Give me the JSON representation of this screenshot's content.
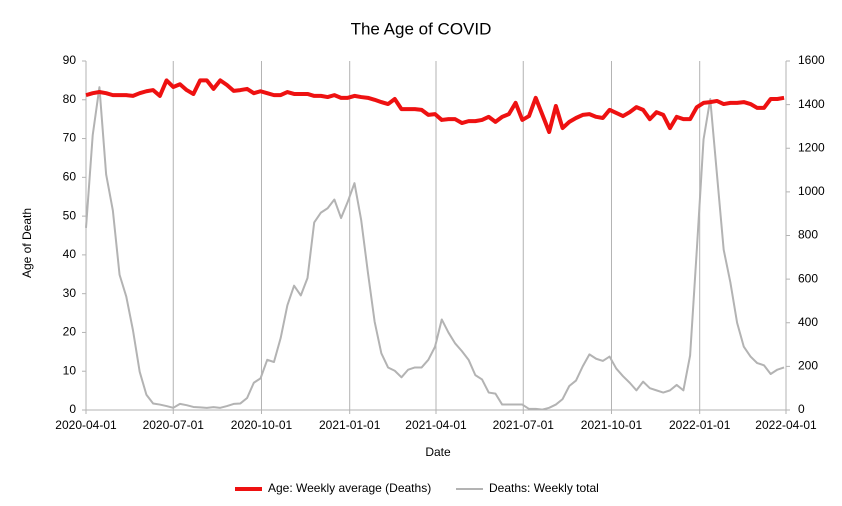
{
  "chart_data": {
    "type": "line",
    "title": "The Age of COVID",
    "xlabel": "Date",
    "ylabel": "Age of Death",
    "x": [
      "2020-04-01",
      "2020-04-08",
      "2020-04-15",
      "2020-04-22",
      "2020-04-29",
      "2020-05-06",
      "2020-05-13",
      "2020-05-20",
      "2020-05-27",
      "2020-06-03",
      "2020-06-10",
      "2020-06-17",
      "2020-06-24",
      "2020-07-01",
      "2020-07-08",
      "2020-07-15",
      "2020-07-22",
      "2020-07-29",
      "2020-08-05",
      "2020-08-12",
      "2020-08-19",
      "2020-08-26",
      "2020-09-02",
      "2020-09-09",
      "2020-09-16",
      "2020-09-23",
      "2020-09-30",
      "2020-10-07",
      "2020-10-14",
      "2020-10-21",
      "2020-10-28",
      "2020-11-04",
      "2020-11-11",
      "2020-11-18",
      "2020-11-25",
      "2020-12-02",
      "2020-12-09",
      "2020-12-16",
      "2020-12-23",
      "2020-12-30",
      "2021-01-06",
      "2021-01-13",
      "2021-01-20",
      "2021-01-27",
      "2021-02-03",
      "2021-02-10",
      "2021-02-17",
      "2021-02-24",
      "2021-03-03",
      "2021-03-10",
      "2021-03-17",
      "2021-03-24",
      "2021-03-31",
      "2021-04-07",
      "2021-04-14",
      "2021-04-21",
      "2021-04-28",
      "2021-05-05",
      "2021-05-12",
      "2021-05-19",
      "2021-05-26",
      "2021-06-02",
      "2021-06-09",
      "2021-06-16",
      "2021-06-23",
      "2021-06-30",
      "2021-07-07",
      "2021-07-14",
      "2021-07-21",
      "2021-07-28",
      "2021-08-04",
      "2021-08-11",
      "2021-08-18",
      "2021-08-25",
      "2021-09-01",
      "2021-09-08",
      "2021-09-15",
      "2021-09-22",
      "2021-09-29",
      "2021-10-06",
      "2021-10-13",
      "2021-10-20",
      "2021-10-27",
      "2021-11-03",
      "2021-11-10",
      "2021-11-17",
      "2021-11-24",
      "2021-12-01",
      "2021-12-08",
      "2021-12-15",
      "2021-12-22",
      "2021-12-29",
      "2022-01-05",
      "2022-01-12",
      "2022-01-19",
      "2022-01-26",
      "2022-02-02",
      "2022-02-09",
      "2022-02-16",
      "2022-02-23",
      "2022-03-02",
      "2022-03-09",
      "2022-03-16",
      "2022-03-23",
      "2022-03-30"
    ],
    "series": [
      {
        "name": "Age: Weekly average (Deaths)",
        "color": "#ee1111",
        "axis": "y",
        "values": [
          81.2,
          81.7,
          82,
          81.7,
          81.2,
          81.2,
          81.2,
          81,
          81.7,
          82.2,
          82.5,
          81,
          85,
          83.3,
          84,
          82.5,
          81.5,
          85,
          85,
          82.8,
          85,
          83.8,
          82.3,
          82.5,
          82.8,
          81.7,
          82.2,
          81.7,
          81.2,
          81.2,
          82,
          81.5,
          81.5,
          81.5,
          81,
          81,
          80.7,
          81.2,
          80.5,
          80.5,
          81,
          80.7,
          80.5,
          80,
          79.4,
          78.9,
          80.2,
          77.6,
          77.6,
          77.6,
          77.4,
          76.1,
          76.3,
          74.8,
          75,
          75,
          74,
          74.5,
          74.5,
          74.8,
          75.6,
          74.3,
          75.6,
          76.3,
          79.2,
          74.8,
          75.8,
          80.5,
          76.1,
          71.7,
          78.4,
          72.7,
          74.3,
          75.3,
          76.1,
          76.3,
          75.6,
          75.3,
          77.4,
          76.6,
          75.8,
          76.8,
          78.1,
          77.4,
          75,
          76.8,
          76.1,
          72.7,
          75.6,
          75,
          75,
          78.1,
          79.2,
          79.4,
          79.7,
          78.9,
          79.2,
          79.2,
          79.4,
          78.9,
          77.9,
          77.9,
          80.2,
          80.2,
          80.5
        ]
      },
      {
        "name": "Deaths: Weekly total",
        "color": "#b3b3b3",
        "axis": "y2",
        "values": [
          835,
          1260,
          1480,
          1080,
          915,
          620,
          520,
          365,
          175,
          70,
          30,
          25,
          18,
          10,
          28,
          22,
          14,
          12,
          10,
          13,
          10,
          18,
          28,
          30,
          55,
          125,
          145,
          230,
          220,
          330,
          480,
          570,
          525,
          605,
          860,
          905,
          925,
          965,
          880,
          955,
          1040,
          870,
          630,
          405,
          260,
          195,
          180,
          150,
          185,
          195,
          195,
          230,
          290,
          415,
          355,
          305,
          270,
          230,
          160,
          140,
          80,
          75,
          25,
          25,
          25,
          25,
          5,
          5,
          2,
          10,
          25,
          50,
          110,
          135,
          200,
          255,
          235,
          225,
          245,
          190,
          155,
          125,
          90,
          130,
          100,
          90,
          80,
          90,
          115,
          90,
          250,
          735,
          1240,
          1425,
          1080,
          735,
          585,
          400,
          290,
          245,
          215,
          205,
          165,
          185,
          195
        ]
      }
    ],
    "xlim": [
      "2020-04-01",
      "2022-04-01"
    ],
    "xticks": [
      "2020-04-01",
      "2020-07-01",
      "2020-10-01",
      "2021-01-01",
      "2021-04-01",
      "2021-07-01",
      "2021-10-01",
      "2022-01-01",
      "2022-04-01"
    ],
    "ylim": [
      0,
      90
    ],
    "yticks": [
      0,
      10,
      20,
      30,
      40,
      50,
      60,
      70,
      80,
      90
    ],
    "y2lim": [
      0,
      1600
    ],
    "y2ticks": [
      0,
      200,
      400,
      600,
      800,
      1000,
      1200,
      1400,
      1600
    ],
    "grid": "x",
    "legend": "bottom"
  }
}
